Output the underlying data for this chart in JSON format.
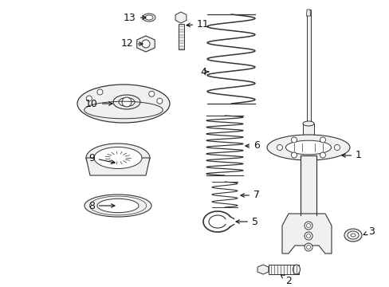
{
  "bg_color": "#ffffff",
  "line_color": "#333333",
  "label_color": "#111111",
  "figsize": [
    4.89,
    3.6
  ],
  "dpi": 100,
  "xlim": [
    0,
    489
  ],
  "ylim": [
    0,
    360
  ]
}
